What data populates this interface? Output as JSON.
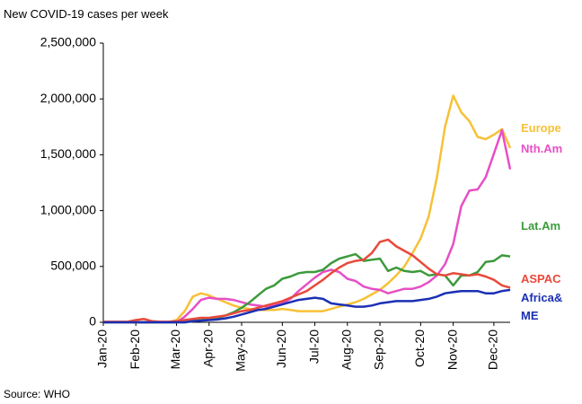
{
  "chart_data": {
    "type": "line",
    "title": "New COVID-19 cases per week",
    "source": "Source: WHO",
    "categories": [
      "Jan-20",
      null,
      null,
      null,
      "Feb-20",
      null,
      null,
      null,
      null,
      "Mar-20",
      null,
      null,
      null,
      "Apr-20",
      null,
      null,
      null,
      "May-20",
      null,
      null,
      null,
      null,
      "Jun-20",
      null,
      null,
      null,
      "Jul-20",
      null,
      null,
      null,
      "Aug-20",
      null,
      null,
      null,
      "Sep-20",
      null,
      null,
      null,
      null,
      "Oct-20",
      null,
      null,
      null,
      "Nov-20",
      null,
      null,
      null,
      null,
      "Dec-20",
      null,
      null
    ],
    "ylim": [
      0,
      2500000
    ],
    "yticks": [
      0,
      {
        "value": 500000,
        "label": "500,000"
      },
      {
        "value": 1000000,
        "label": "1,000,000"
      },
      {
        "value": 1500000,
        "label": "1,500,000"
      },
      {
        "value": 2000000,
        "label": "2,000,000"
      },
      {
        "value": 2500000,
        "label": "2,500,000"
      }
    ],
    "grid": false,
    "series": [
      {
        "name": "Europe",
        "color": "#f7c136",
        "values": [
          0,
          0,
          0,
          0,
          0,
          0,
          0,
          0,
          0,
          20000,
          100000,
          230000,
          260000,
          240000,
          210000,
          180000,
          150000,
          130000,
          120000,
          110000,
          110000,
          110000,
          120000,
          110000,
          100000,
          100000,
          100000,
          100000,
          120000,
          140000,
          160000,
          180000,
          210000,
          250000,
          290000,
          350000,
          420000,
          500000,
          620000,
          750000,
          950000,
          1300000,
          1750000,
          2030000,
          1880000,
          1800000,
          1660000,
          1640000,
          1680000,
          1730000,
          1560000
        ]
      },
      {
        "name": "Nth.Am",
        "color": "#e64fc6",
        "values": [
          0,
          0,
          0,
          0,
          0,
          0,
          0,
          0,
          0,
          0,
          50000,
          120000,
          200000,
          220000,
          210000,
          210000,
          200000,
          180000,
          160000,
          150000,
          140000,
          150000,
          170000,
          210000,
          280000,
          340000,
          400000,
          450000,
          470000,
          450000,
          390000,
          370000,
          320000,
          300000,
          290000,
          260000,
          280000,
          300000,
          300000,
          320000,
          360000,
          420000,
          520000,
          700000,
          1040000,
          1180000,
          1190000,
          1300000,
          1510000,
          1720000,
          1370000
        ]
      },
      {
        "name": "Lat.Am",
        "color": "#3c9a3c",
        "values": [
          0,
          0,
          0,
          0,
          0,
          0,
          0,
          0,
          0,
          0,
          0,
          10000,
          20000,
          30000,
          40000,
          60000,
          90000,
          130000,
          180000,
          240000,
          300000,
          330000,
          390000,
          410000,
          440000,
          450000,
          450000,
          470000,
          530000,
          570000,
          590000,
          610000,
          550000,
          560000,
          570000,
          460000,
          490000,
          460000,
          450000,
          460000,
          420000,
          430000,
          420000,
          330000,
          420000,
          420000,
          450000,
          540000,
          550000,
          600000,
          590000
        ]
      },
      {
        "name": "ASPAC",
        "color": "#e8493b",
        "values": [
          5000,
          5000,
          5000,
          5000,
          20000,
          30000,
          10000,
          5000,
          5000,
          10000,
          20000,
          30000,
          40000,
          40000,
          50000,
          60000,
          80000,
          100000,
          110000,
          130000,
          150000,
          170000,
          190000,
          220000,
          250000,
          280000,
          330000,
          380000,
          440000,
          490000,
          530000,
          550000,
          560000,
          620000,
          720000,
          740000,
          680000,
          640000,
          600000,
          540000,
          480000,
          430000,
          420000,
          440000,
          430000,
          420000,
          430000,
          410000,
          380000,
          330000,
          310000
        ]
      },
      {
        "name": "Africa& ME",
        "color": "#1b2fb4",
        "values": [
          0,
          0,
          0,
          0,
          0,
          0,
          0,
          0,
          0,
          0,
          0,
          10000,
          15000,
          20000,
          25000,
          35000,
          50000,
          70000,
          90000,
          110000,
          120000,
          140000,
          160000,
          180000,
          200000,
          210000,
          220000,
          210000,
          170000,
          160000,
          150000,
          140000,
          140000,
          150000,
          170000,
          180000,
          190000,
          190000,
          190000,
          200000,
          210000,
          230000,
          260000,
          270000,
          280000,
          280000,
          280000,
          260000,
          260000,
          280000,
          290000
        ]
      }
    ]
  }
}
